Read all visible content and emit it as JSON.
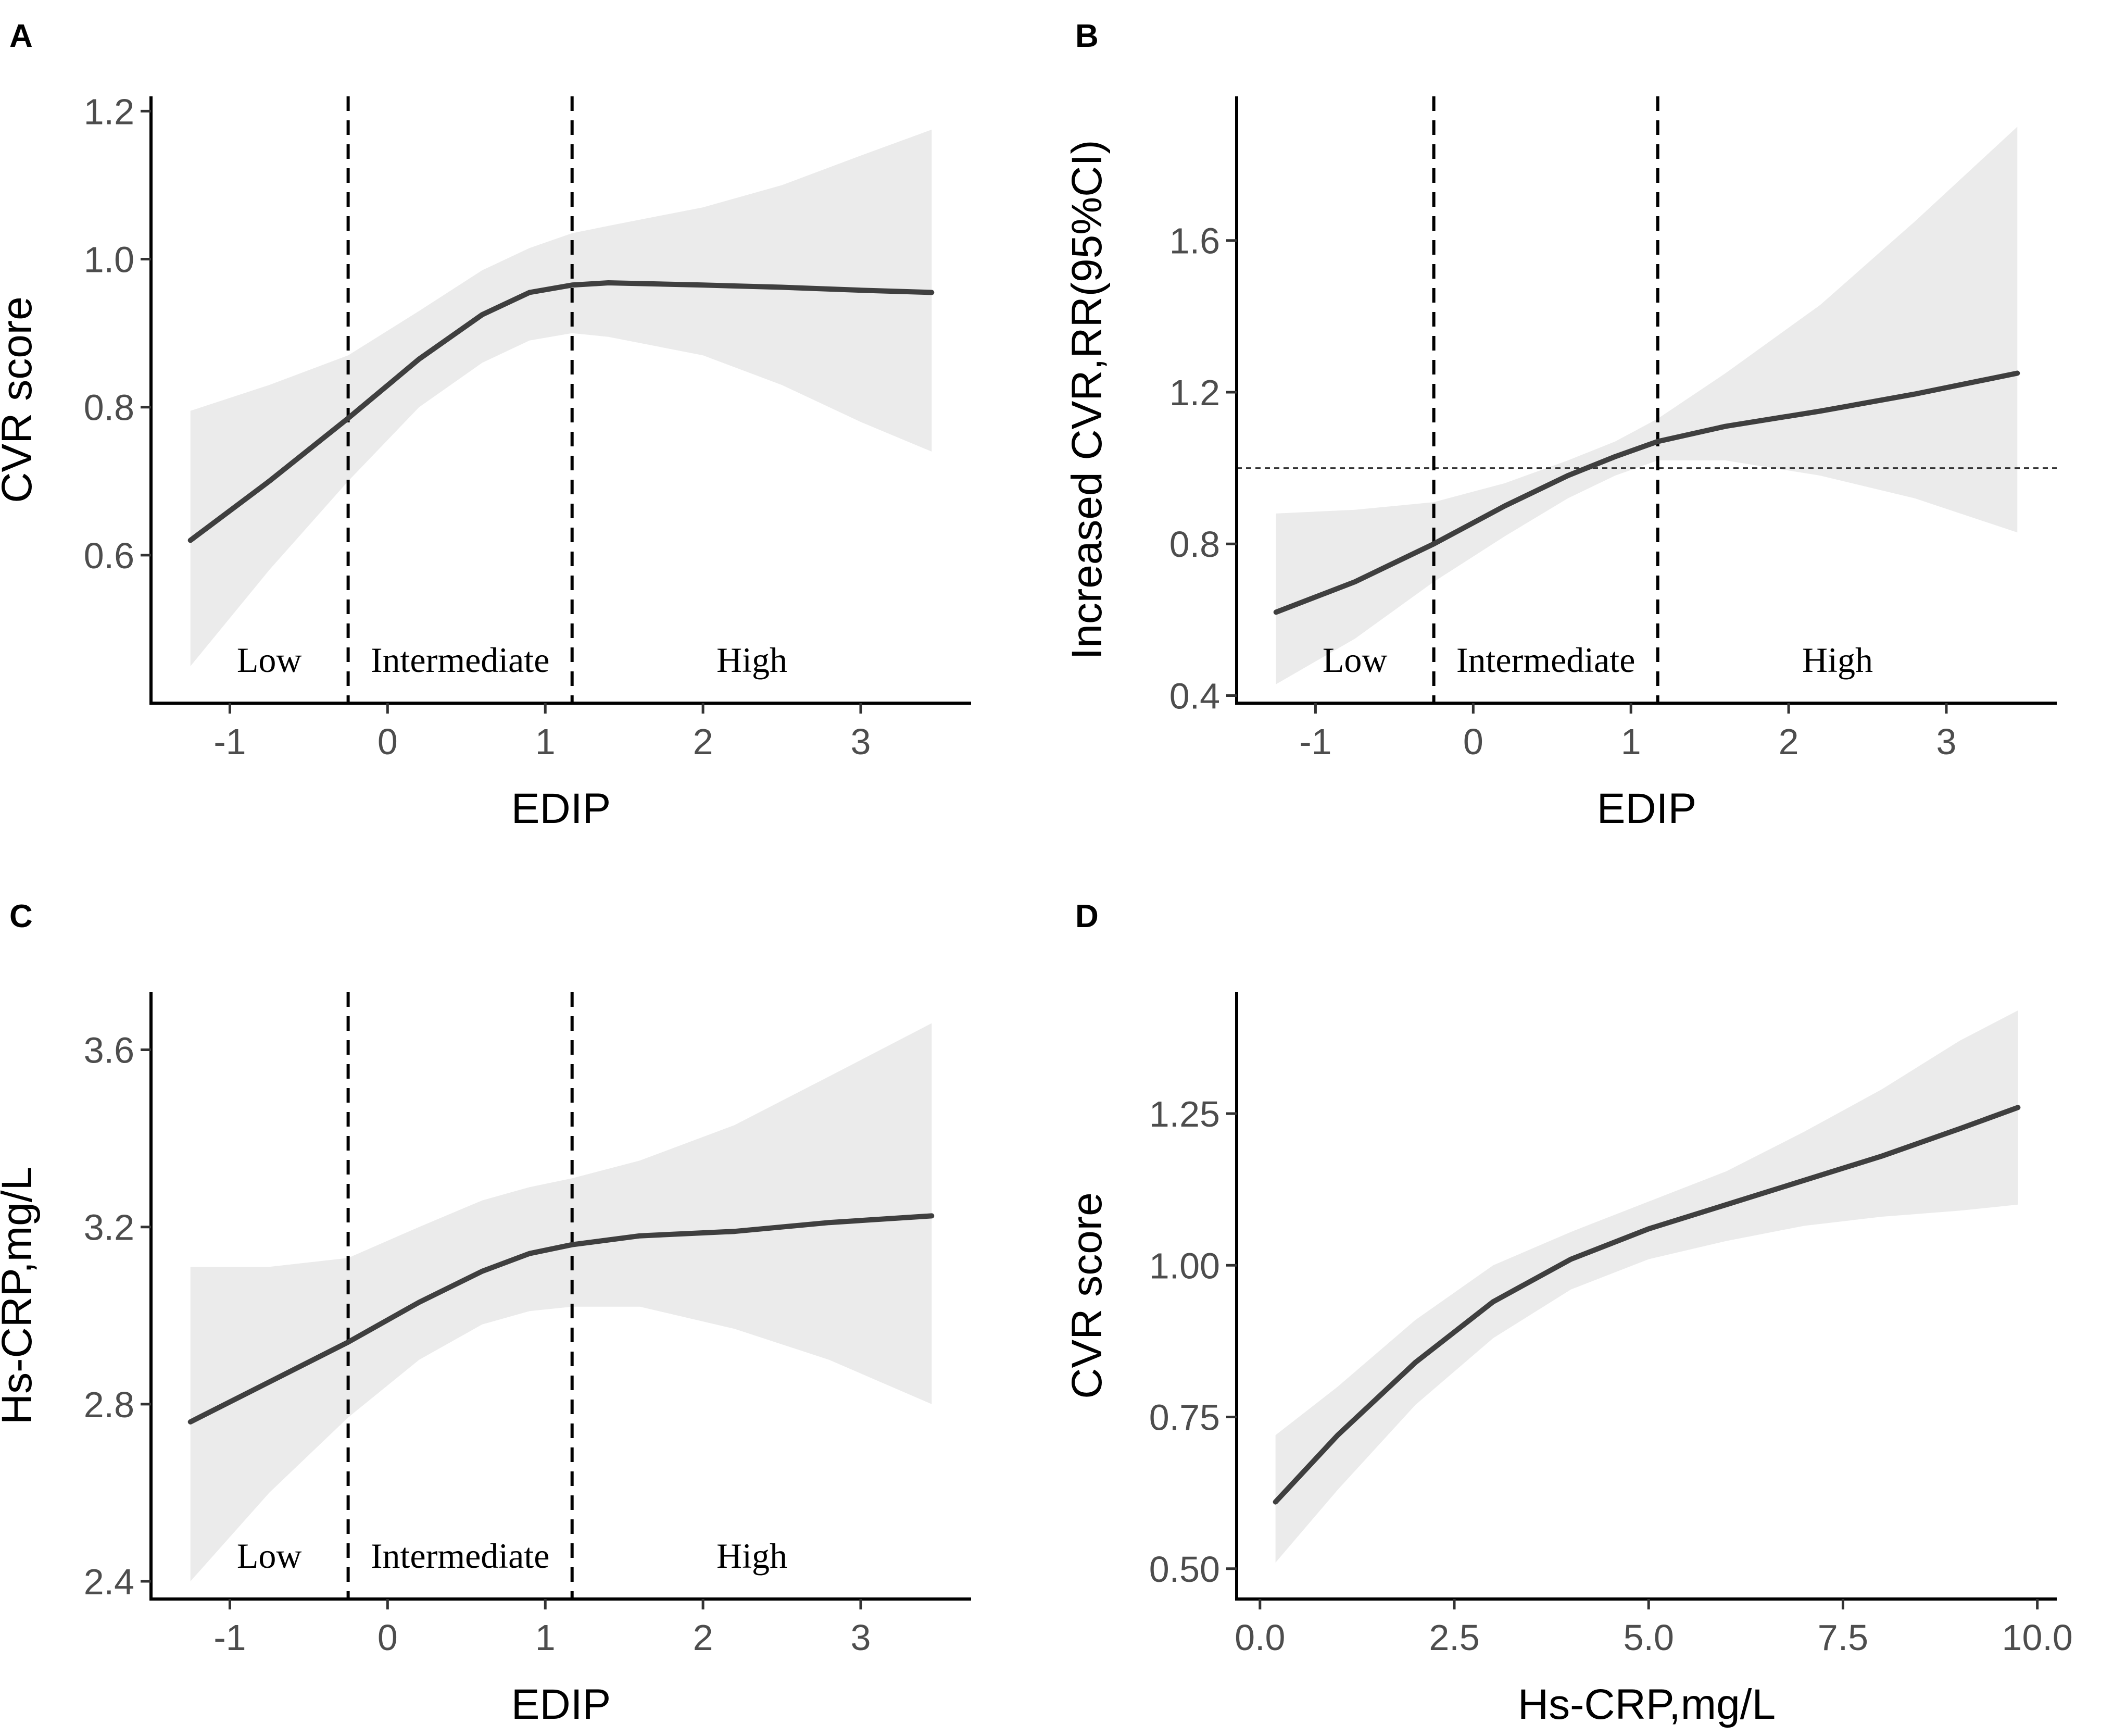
{
  "chart_data": [
    {
      "id": "A",
      "type": "line",
      "panel_label": "A",
      "xlabel": "EDIP",
      "ylabel": "CVR score",
      "xlim": [
        -1.5,
        3.7
      ],
      "ylim": [
        0.4,
        1.22
      ],
      "x_ticks": [
        -1,
        0,
        1,
        2,
        3
      ],
      "x_tick_labels": [
        "-1",
        "0",
        "1",
        "2",
        "3"
      ],
      "y_ticks": [
        0.6,
        0.8,
        1.0,
        1.2
      ],
      "y_tick_labels": [
        "0.6",
        "0.8",
        "1.0",
        "1.2"
      ],
      "cutpoints": [
        -0.25,
        1.17
      ],
      "regions": [
        "Low",
        "Intermediate",
        "High"
      ],
      "series": [
        {
          "name": "fit",
          "x": [
            -1.25,
            -0.75,
            -0.25,
            0.2,
            0.6,
            0.9,
            1.17,
            1.4,
            2.0,
            2.5,
            3.0,
            3.45
          ],
          "y": [
            0.62,
            0.7,
            0.785,
            0.865,
            0.925,
            0.955,
            0.965,
            0.968,
            0.965,
            0.962,
            0.958,
            0.955
          ],
          "lower": [
            0.45,
            0.58,
            0.7,
            0.8,
            0.86,
            0.89,
            0.9,
            0.895,
            0.87,
            0.83,
            0.78,
            0.74
          ],
          "upper": [
            0.795,
            0.83,
            0.87,
            0.93,
            0.985,
            1.015,
            1.035,
            1.045,
            1.07,
            1.1,
            1.14,
            1.175
          ]
        }
      ]
    },
    {
      "id": "B",
      "type": "line",
      "panel_label": "B",
      "xlabel": "EDIP",
      "ylabel": "Increased CVR,RR(95%CI)",
      "xlim": [
        -1.5,
        3.7
      ],
      "ylim": [
        0.38,
        1.98
      ],
      "x_ticks": [
        -1,
        0,
        1,
        2,
        3
      ],
      "x_tick_labels": [
        "-1",
        "0",
        "1",
        "2",
        "3"
      ],
      "y_ticks": [
        0.4,
        0.8,
        1.2,
        1.6
      ],
      "y_tick_labels": [
        "0.4",
        "0.8",
        "1.2",
        "1.6"
      ],
      "reference_line": 1.0,
      "cutpoints": [
        -0.25,
        1.17
      ],
      "regions": [
        "Low",
        "Intermediate",
        "High"
      ],
      "series": [
        {
          "name": "fit",
          "x": [
            -1.25,
            -0.75,
            -0.25,
            0.2,
            0.6,
            0.9,
            1.17,
            1.6,
            2.2,
            2.8,
            3.45
          ],
          "y": [
            0.62,
            0.7,
            0.8,
            0.9,
            0.98,
            1.03,
            1.07,
            1.11,
            1.15,
            1.195,
            1.25
          ],
          "lower": [
            0.43,
            0.55,
            0.7,
            0.82,
            0.92,
            0.98,
            1.02,
            1.02,
            0.98,
            0.92,
            0.83
          ],
          "upper": [
            0.88,
            0.89,
            0.91,
            0.96,
            1.02,
            1.07,
            1.13,
            1.25,
            1.43,
            1.65,
            1.9
          ]
        }
      ]
    },
    {
      "id": "C",
      "type": "line",
      "panel_label": "C",
      "xlabel": "EDIP",
      "ylabel": "Hs-CRP,mg/L",
      "xlim": [
        -1.5,
        3.7
      ],
      "ylim": [
        2.36,
        3.73
      ],
      "x_ticks": [
        -1,
        0,
        1,
        2,
        3
      ],
      "x_tick_labels": [
        "-1",
        "0",
        "1",
        "2",
        "3"
      ],
      "y_ticks": [
        2.4,
        2.8,
        3.2,
        3.6
      ],
      "y_tick_labels": [
        "2.4",
        "2.8",
        "3.2",
        "3.6"
      ],
      "cutpoints": [
        -0.25,
        1.17
      ],
      "regions": [
        "Low",
        "Intermediate",
        "High"
      ],
      "series": [
        {
          "name": "fit",
          "x": [
            -1.25,
            -0.75,
            -0.25,
            0.2,
            0.6,
            0.9,
            1.17,
            1.6,
            2.2,
            2.8,
            3.45
          ],
          "y": [
            2.76,
            2.85,
            2.94,
            3.03,
            3.1,
            3.14,
            3.16,
            3.18,
            3.19,
            3.21,
            3.225
          ],
          "lower": [
            2.4,
            2.6,
            2.77,
            2.9,
            2.98,
            3.01,
            3.02,
            3.02,
            2.97,
            2.9,
            2.8
          ],
          "upper": [
            3.11,
            3.11,
            3.13,
            3.2,
            3.26,
            3.29,
            3.31,
            3.35,
            3.43,
            3.54,
            3.66
          ]
        }
      ]
    },
    {
      "id": "D",
      "type": "line",
      "panel_label": "D",
      "xlabel": "Hs-CRP,mg/L",
      "ylabel": "CVR score",
      "xlim": [
        -0.3,
        10.25
      ],
      "ylim": [
        0.45,
        1.45
      ],
      "x_ticks": [
        0.0,
        2.5,
        5.0,
        7.5,
        10.0
      ],
      "x_tick_labels": [
        "0.0",
        "2.5",
        "5.0",
        "7.5",
        "10.0"
      ],
      "y_ticks": [
        0.5,
        0.75,
        1.0,
        1.25
      ],
      "y_tick_labels": [
        "0.50",
        "0.75",
        "1.00",
        "1.25"
      ],
      "series": [
        {
          "name": "fit",
          "x": [
            0.2,
            1.0,
            2.0,
            3.0,
            4.0,
            5.0,
            6.0,
            7.0,
            8.0,
            9.0,
            9.75
          ],
          "y": [
            0.61,
            0.72,
            0.84,
            0.94,
            1.01,
            1.06,
            1.1,
            1.14,
            1.18,
            1.225,
            1.26
          ],
          "lower": [
            0.51,
            0.63,
            0.77,
            0.88,
            0.96,
            1.01,
            1.04,
            1.065,
            1.08,
            1.09,
            1.1
          ],
          "upper": [
            0.72,
            0.8,
            0.91,
            1.0,
            1.055,
            1.105,
            1.155,
            1.22,
            1.29,
            1.37,
            1.42
          ]
        }
      ]
    }
  ]
}
